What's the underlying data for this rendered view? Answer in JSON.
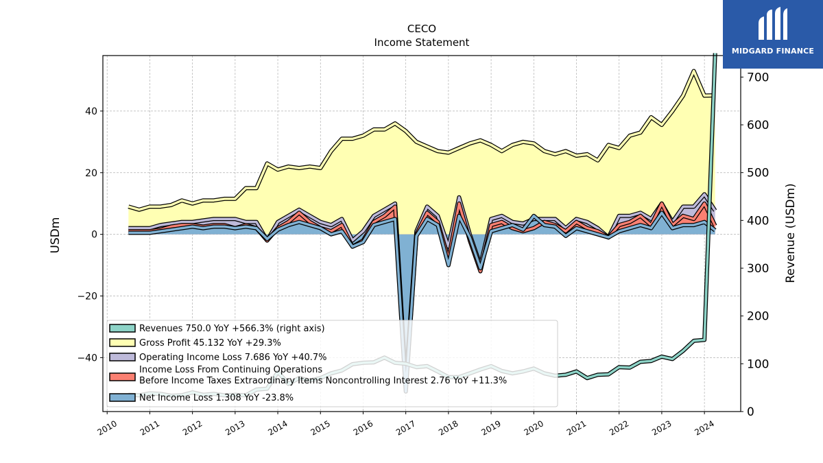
{
  "logo": {
    "name": "MIDGARD FINANCE"
  },
  "chart_data": {
    "type": "area",
    "title": "CECO",
    "subtitle": "Income Statement",
    "ylabel": "USDm",
    "ylabel_right": "Revenue (USDm)",
    "ylim": [
      -57.5,
      58
    ],
    "ylim_right": [
      0,
      745
    ],
    "yticks": [
      -40,
      -20,
      0,
      20,
      40
    ],
    "yticks_right": [
      0,
      100,
      200,
      300,
      400,
      500,
      600,
      700
    ],
    "xlim": [
      2009.9,
      2024.85
    ],
    "xticks": [
      "2010",
      "2011",
      "2012",
      "2013",
      "2014",
      "2015",
      "2016",
      "2017",
      "2018",
      "2019",
      "2020",
      "2021",
      "2022",
      "2023",
      "2024"
    ],
    "grid": true,
    "legend_position": "lower-left",
    "x": [
      2010.5,
      2010.75,
      2011.0,
      2011.25,
      2011.5,
      2011.75,
      2012.0,
      2012.25,
      2012.5,
      2012.75,
      2013.0,
      2013.25,
      2013.5,
      2013.75,
      2014.0,
      2014.25,
      2014.5,
      2014.75,
      2015.0,
      2015.25,
      2015.5,
      2015.75,
      2016.0,
      2016.25,
      2016.5,
      2016.75,
      2017.0,
      2017.25,
      2017.5,
      2017.75,
      2018.0,
      2018.25,
      2018.5,
      2018.75,
      2019.0,
      2019.25,
      2019.5,
      2019.75,
      2020.0,
      2020.25,
      2020.5,
      2020.75,
      2021.0,
      2021.25,
      2021.5,
      2021.75,
      2022.0,
      2022.25,
      2022.5,
      2022.75,
      2023.0,
      2023.25,
      2023.5,
      2023.75,
      2024.0,
      2024.25
    ],
    "series": [
      {
        "name": "Revenues",
        "legend": "Revenues  750.0 YoY +566.3% (right axis)",
        "axis": "right",
        "color": "#8dd3c7",
        "values": [
          35,
          34,
          38,
          37,
          33,
          34,
          40,
          35,
          37,
          34,
          35,
          34,
          46,
          48,
          83,
          58,
          70,
          65,
          70,
          80,
          86,
          99,
          102,
          103,
          113,
          102,
          100,
          93,
          95,
          84,
          72,
          72,
          80,
          88,
          95,
          85,
          80,
          84,
          90,
          80,
          75,
          77,
          84,
          70,
          77,
          78,
          93,
          92,
          104,
          106,
          115,
          110,
          127,
          148,
          150,
          750
        ]
      },
      {
        "name": "Gross Profit",
        "legend": "Gross Profit  45.132 YoY +29.3%",
        "axis": "left",
        "color": "#ffffb3",
        "values": [
          9,
          8,
          9,
          9,
          9.5,
          11,
          10,
          11,
          11,
          11.5,
          11.5,
          15,
          15,
          23,
          21,
          22,
          21.5,
          22,
          21.5,
          27,
          31,
          31,
          32,
          34,
          34,
          36,
          33.5,
          30,
          28.5,
          27,
          26.5,
          28,
          29.5,
          30.5,
          29,
          27,
          29,
          30,
          29.5,
          27,
          26,
          27,
          25.5,
          26,
          24,
          29,
          28,
          32,
          33,
          38,
          35.5,
          40,
          45,
          53,
          45,
          45.1
        ]
      },
      {
        "name": "Operating Income Loss",
        "legend": "Operating Income Loss  7.686 YoY +40.7%",
        "axis": "left",
        "color": "#bebada",
        "values": [
          2,
          2,
          2,
          3,
          3.5,
          4,
          4,
          4.5,
          5,
          5,
          5,
          4,
          4,
          -2,
          4,
          6,
          8,
          6,
          4,
          3,
          5,
          -2,
          1,
          6,
          8,
          10,
          -48,
          1,
          9,
          6,
          -4,
          12,
          0,
          -10,
          5,
          6,
          4,
          3.5,
          5,
          5,
          5,
          2,
          5,
          4,
          2,
          -1,
          6,
          6,
          7,
          5,
          10,
          4,
          9,
          9,
          13,
          7.7
        ]
      },
      {
        "name": "Income Loss From Continuing Operations Before Income Taxes Extraordinary Items Noncontrolling Interest",
        "legend": "Income Loss From Continuing Operations\nBefore Income Taxes Extraordinary Items Noncontrolling Interest  2.76 YoY +11.3%",
        "axis": "left",
        "color": "#fb8072",
        "values": [
          1,
          1,
          1,
          1.5,
          2.5,
          3,
          3,
          2.5,
          3,
          3,
          2,
          3,
          2,
          -2,
          2,
          4,
          7,
          4,
          2,
          1,
          3,
          -4,
          -2,
          4,
          6,
          9,
          -50,
          0,
          7,
          4,
          -8,
          10,
          -2,
          -12,
          3,
          4,
          2,
          1,
          2,
          4,
          3,
          1,
          4,
          2,
          1,
          -1,
          3,
          4,
          6,
          3,
          10,
          3,
          6,
          5,
          10,
          2.8
        ]
      },
      {
        "name": "Net Income Loss",
        "legend": "Net Income Loss  1.308 YoY -23.8%",
        "axis": "left",
        "color": "#80b1d3",
        "values": [
          0.5,
          0.5,
          0.5,
          1,
          1.5,
          2,
          2.5,
          2,
          2.5,
          2.5,
          2,
          2.5,
          2,
          -1.5,
          1.5,
          3,
          4,
          3,
          2,
          0,
          1,
          -4,
          -2.5,
          3,
          4,
          5,
          -51,
          -0.5,
          5,
          3,
          -10,
          6,
          -1,
          -11,
          1,
          2,
          3,
          1.5,
          6,
          3,
          2.5,
          -0.5,
          2,
          1,
          0,
          -1,
          1,
          2,
          3,
          2,
          7,
          2,
          3,
          3,
          4,
          1.3
        ]
      }
    ]
  }
}
